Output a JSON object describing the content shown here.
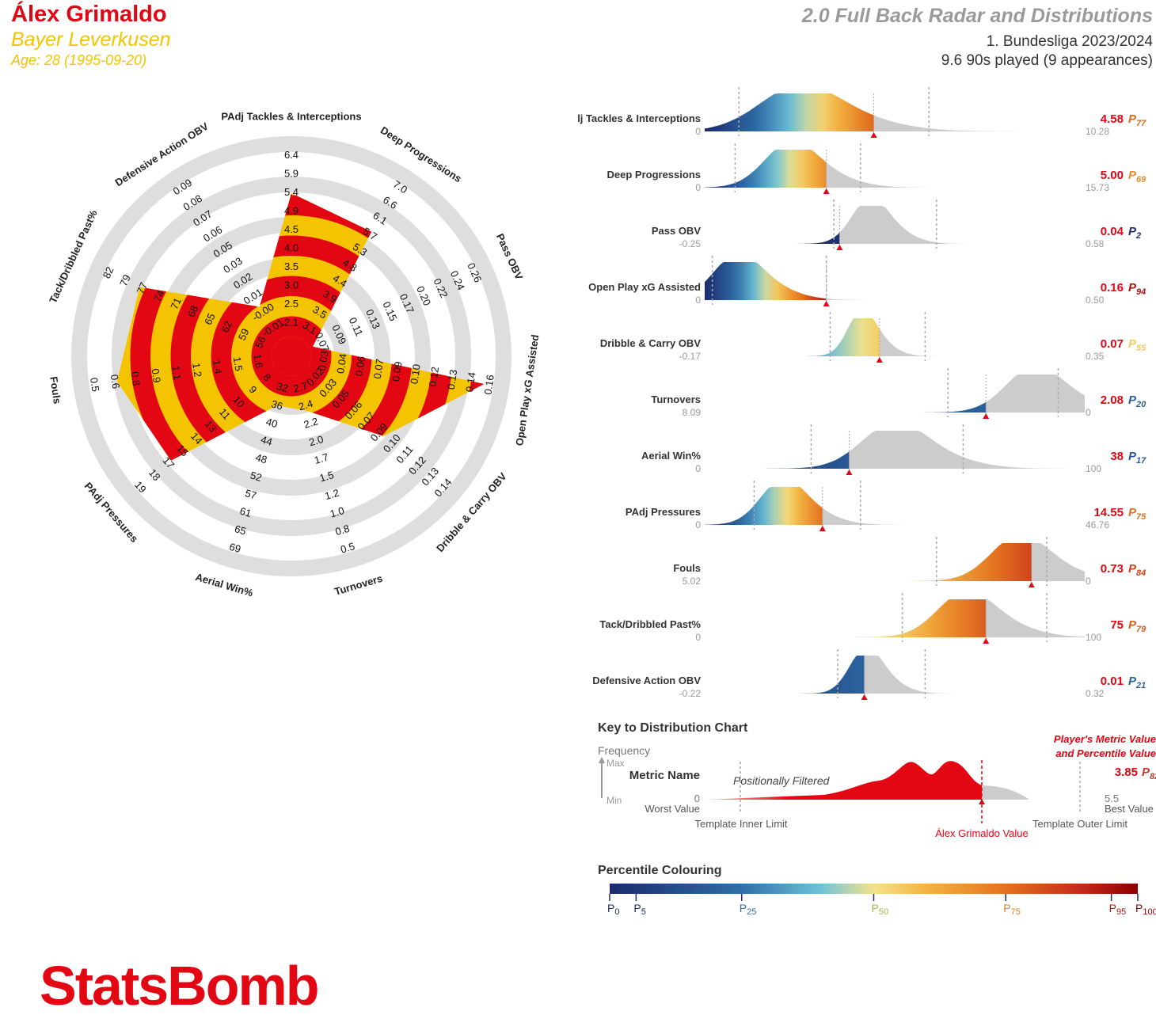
{
  "header": {
    "player_name": "Álex Grimaldo",
    "team": "Bayer Leverkusen",
    "age_line": "Age: 28 (1995-09-20)",
    "report_title": "2.0 Full Back Radar and Distributions",
    "competition": "1. Bundesliga 2023/2024",
    "minutes_line": "9.6 90s played (9 appearances)"
  },
  "colors": {
    "radar_red": "#e30613",
    "radar_yellow": "#f5c400",
    "ring_grey": "#dedede",
    "distribution_grey": "#cccccc",
    "marker_red": "#e30613"
  },
  "chart_data": [
    {
      "type": "radar",
      "axes": [
        {
          "label": "PAdj Tackles & Interceptions",
          "ticks": [
            "2.1",
            "2.5",
            "3.0",
            "3.5",
            "4.0",
            "4.5",
            "4.9",
            "5.4",
            "5.9",
            "6.4"
          ],
          "percentile": 0.77
        },
        {
          "label": "Deep Progressions",
          "ticks": [
            "3.1",
            "3.5",
            "3.9",
            "4.4",
            "4.8",
            "5.3",
            "5.7",
            "6.1",
            "6.6",
            "7.0"
          ],
          "percentile": 0.69
        },
        {
          "label": "Pass OBV",
          "ticks": [
            "0.07",
            "0.09",
            "0.11",
            "0.13",
            "0.15",
            "0.17",
            "0.20",
            "0.22",
            "0.24",
            "0.26"
          ],
          "percentile": 0.02
        },
        {
          "label": "Open Play xG Assisted",
          "ticks": [
            "0.03",
            "0.04",
            "0.06",
            "0.07",
            "0.09",
            "0.10",
            "0.12",
            "0.13",
            "0.14",
            "0.16"
          ],
          "percentile": 0.94
        },
        {
          "label": "Dribble & Carry OBV",
          "ticks": [
            "0.02",
            "0.03",
            "0.05",
            "0.06",
            "0.07",
            "0.09",
            "0.10",
            "0.11",
            "0.12",
            "0.13",
            "0.14"
          ],
          "percentile": 0.55
        },
        {
          "label": "Turnovers",
          "ticks": [
            "2.7",
            "2.4",
            "2.2",
            "2.0",
            "1.7",
            "1.5",
            "1.2",
            "1.0",
            "0.8",
            "0.5"
          ],
          "percentile": 0.2
        },
        {
          "label": "Aerial Win%",
          "ticks": [
            "32",
            "36",
            "40",
            "44",
            "48",
            "52",
            "57",
            "61",
            "65",
            "69"
          ],
          "percentile": 0.17
        },
        {
          "label": "PAdj Pressures",
          "ticks": [
            "8",
            "9",
            "10",
            "11",
            "13",
            "14",
            "15",
            "17",
            "18",
            "19"
          ],
          "percentile": 0.75
        },
        {
          "label": "Fouls",
          "ticks": [
            "1.6",
            "1.5",
            "1.4",
            "1.2",
            "1.1",
            "0.9",
            "0.8",
            "0.6",
            "0.5"
          ],
          "percentile": 0.84
        },
        {
          "label": "Tack/Dribbled Past%",
          "ticks": [
            "56",
            "59",
            "62",
            "65",
            "68",
            "71",
            "74",
            "77",
            "79",
            "82"
          ],
          "percentile": 0.79
        },
        {
          "label": "Defensive Action OBV",
          "ticks": [
            "-0.01",
            "-0.00",
            "0.01",
            "0.02",
            "0.03",
            "0.05",
            "0.06",
            "0.07",
            "0.08",
            "0.09"
          ],
          "percentile": 0.21
        }
      ]
    },
    {
      "type": "distribution",
      "metrics": [
        {
          "name": "PAdj Tackles & Interceptions",
          "worst": "0",
          "best": "10.28",
          "value": "4.58",
          "percentile": "77",
          "percentile_num": 77,
          "frac": 0.445,
          "inner": 0.09,
          "outer": 0.59,
          "pos": 0.24,
          "spread": 0.1
        },
        {
          "name": "Deep Progressions",
          "worst": "0",
          "best": "15.73",
          "value": "5.00",
          "percentile": "69",
          "percentile_num": 69,
          "frac": 0.32,
          "inner": 0.08,
          "outer": 0.41,
          "pos": 0.22,
          "spread": 0.065
        },
        {
          "name": "Pass OBV",
          "worst": "-0.25",
          "best": "0.58",
          "value": "0.04",
          "percentile": "2",
          "percentile_num": 2,
          "frac": 0.355,
          "inner": 0.34,
          "outer": 0.61,
          "pos": 0.43,
          "spread": 0.045
        },
        {
          "name": "Open Play xG Assisted",
          "worst": "0",
          "best": "0.50",
          "value": "0.16",
          "percentile": "94",
          "percentile_num": 94,
          "frac": 0.32,
          "inner": 0.02,
          "outer": 0.32,
          "pos": 0.08,
          "spread": 0.06
        },
        {
          "name": "Dribble & Carry OBV",
          "worst": "-0.17",
          "best": "0.35",
          "value": "0.07",
          "percentile": "55",
          "percentile_num": 55,
          "frac": 0.46,
          "inner": 0.33,
          "outer": 0.58,
          "pos": 0.41,
          "spread": 0.035
        },
        {
          "name": "Turnovers",
          "worst": "8.09",
          "best": "0",
          "value": "2.08",
          "percentile": "20",
          "percentile_num": 20,
          "frac": 0.74,
          "inner": 0.64,
          "outer": 0.93,
          "pos": 0.86,
          "spread": 0.07
        },
        {
          "name": "Aerial Win%",
          "worst": "0",
          "best": "100",
          "value": "38",
          "percentile": "17",
          "percentile_num": 17,
          "frac": 0.38,
          "inner": 0.28,
          "outer": 0.68,
          "pos": 0.49,
          "spread": 0.08
        },
        {
          "name": "PAdj Pressures",
          "worst": "0",
          "best": "46.76",
          "value": "14.55",
          "percentile": "75",
          "percentile_num": 75,
          "frac": 0.31,
          "inner": 0.13,
          "outer": 0.41,
          "pos": 0.2,
          "spread": 0.055
        },
        {
          "name": "Fouls",
          "worst": "5.02",
          "best": "0",
          "value": "0.73",
          "percentile": "84",
          "percentile_num": 84,
          "frac": 0.86,
          "inner": 0.61,
          "outer": 0.9,
          "pos": 0.82,
          "spread": 0.07
        },
        {
          "name": "Tack/Dribbled Past%",
          "worst": "0",
          "best": "100",
          "value": "75",
          "percentile": "79",
          "percentile_num": 79,
          "frac": 0.74,
          "inner": 0.52,
          "outer": 0.9,
          "pos": 0.68,
          "spread": 0.07
        },
        {
          "name": "Defensive Action OBV",
          "worst": "-0.22",
          "best": "0.32",
          "value": "0.01",
          "percentile": "21",
          "percentile_num": 21,
          "frac": 0.42,
          "inner": 0.35,
          "outer": 0.58,
          "pos": 0.42,
          "spread": 0.04
        }
      ]
    }
  ],
  "key": {
    "title": "Key to Distribution Chart",
    "frequency": "Frequency",
    "max": "Max",
    "min": "Min",
    "metric_name": "Metric Name",
    "worst_number": "0",
    "worst_value": "Worst Value",
    "positionally_filtered": "Positionally Filtered",
    "inner_limit": "Template Inner Limit",
    "player_value_label": "Álex Grimaldo Value",
    "outer_limit": "Template Outer Limit",
    "player_metric_line1": "Player's Metric Value",
    "player_metric_line2": "and Percentile Value",
    "sample_value": "3.85",
    "sample_percentile": "82",
    "best_number": "5.5",
    "best_value": "Best Value"
  },
  "colouring": {
    "title": "Percentile Colouring",
    "ticks": [
      {
        "label": "0",
        "pct": 0,
        "color": "#1b2a6b"
      },
      {
        "label": "5",
        "pct": 5,
        "color": "#1b2a6b"
      },
      {
        "label": "25",
        "pct": 25,
        "color": "#2f6ea8"
      },
      {
        "label": "50",
        "pct": 50,
        "color": "#a8b84a"
      },
      {
        "label": "75",
        "pct": 75,
        "color": "#d9822b"
      },
      {
        "label": "95",
        "pct": 95,
        "color": "#b01515"
      },
      {
        "label": "100",
        "pct": 100,
        "color": "#8b0000"
      }
    ]
  },
  "brand": "StatsBomb"
}
